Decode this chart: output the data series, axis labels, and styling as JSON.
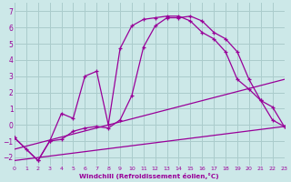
{
  "bg_color": "#cce8e8",
  "grid_color": "#aacccc",
  "line_color": "#990099",
  "xlabel": "Windchill (Refroidissement éolien,°C)",
  "xlim": [
    0,
    23
  ],
  "ylim": [
    -2.5,
    7.5
  ],
  "yticks": [
    -2,
    -1,
    0,
    1,
    2,
    3,
    4,
    5,
    6,
    7
  ],
  "xticks": [
    0,
    1,
    2,
    3,
    4,
    5,
    6,
    7,
    8,
    9,
    10,
    11,
    12,
    13,
    14,
    15,
    16,
    17,
    18,
    19,
    20,
    21,
    22,
    23
  ],
  "curve1_x": [
    0,
    1,
    2,
    3,
    4,
    5,
    6,
    7,
    8,
    9,
    10,
    11,
    12,
    13,
    14,
    15,
    16,
    17,
    18,
    19,
    20,
    21,
    22,
    23
  ],
  "curve1_y": [
    -0.8,
    -1.5,
    -2.2,
    -1.0,
    0.7,
    0.4,
    3.0,
    3.3,
    0.0,
    4.7,
    6.1,
    6.5,
    6.6,
    6.7,
    6.7,
    6.4,
    5.7,
    5.3,
    4.5,
    2.8,
    2.2,
    1.5,
    1.1,
    -0.1
  ],
  "curve2_x": [
    0,
    2,
    3,
    4,
    5,
    6,
    7,
    8,
    9,
    10,
    11,
    12,
    13,
    14,
    15,
    16,
    17,
    18,
    19,
    20,
    21,
    22,
    23
  ],
  "curve2_y": [
    -0.8,
    -2.2,
    -1.0,
    -0.9,
    -0.4,
    -0.2,
    -0.1,
    -0.2,
    0.3,
    1.8,
    4.8,
    6.1,
    6.6,
    6.6,
    6.7,
    6.4,
    5.7,
    5.3,
    4.5,
    2.8,
    1.5,
    0.3,
    -0.1
  ],
  "line1_x": [
    0,
    23
  ],
  "line1_y": [
    -1.5,
    2.8
  ],
  "line2_x": [
    0,
    23
  ],
  "line2_y": [
    -2.2,
    -0.1
  ]
}
